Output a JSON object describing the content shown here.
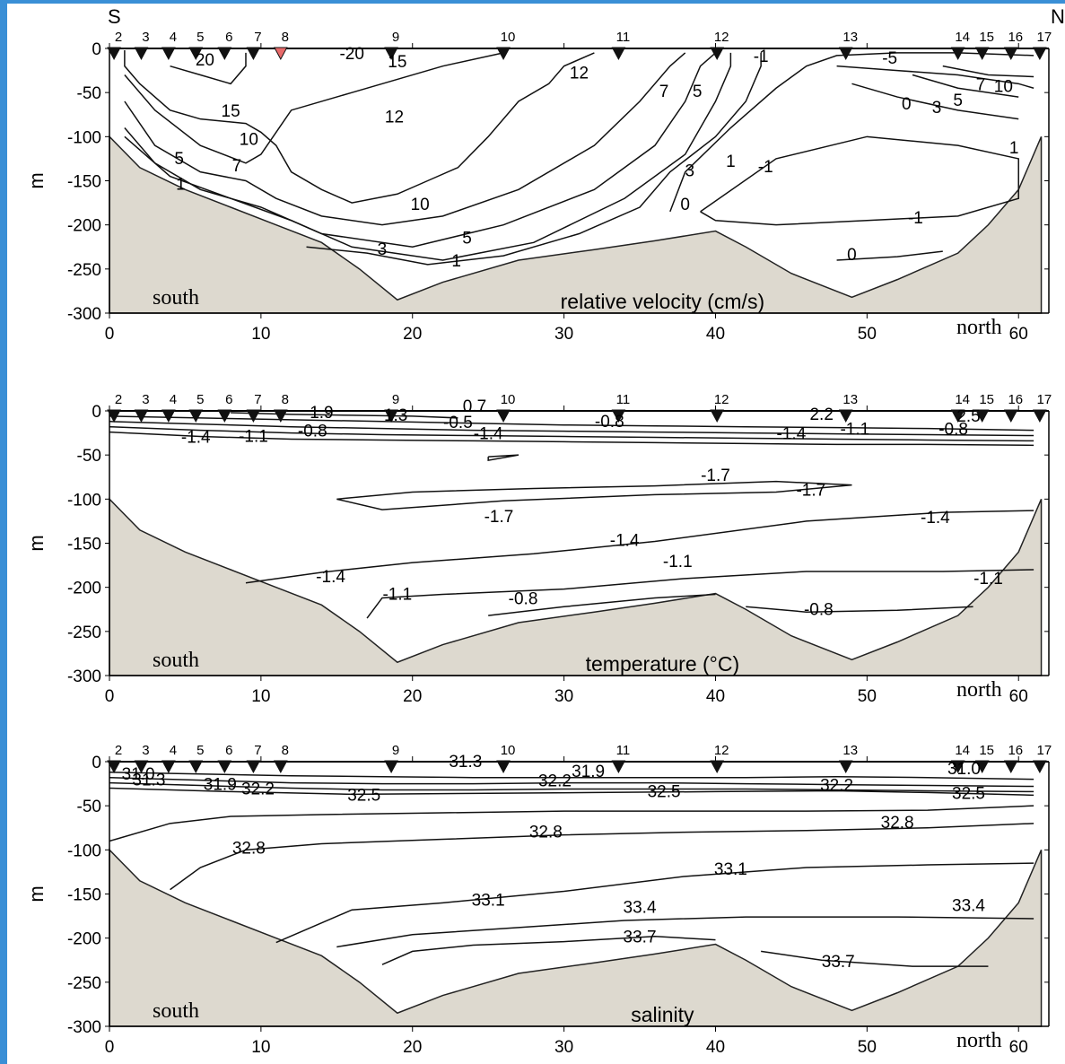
{
  "compass": {
    "left": "S",
    "right": "N"
  },
  "chart_data": [
    {
      "type": "contour",
      "title": "relative velocity (cm/s)",
      "ylabel": "m",
      "xlim": [
        0,
        62
      ],
      "ylim": [
        -300,
        0
      ],
      "xticks": [
        "0",
        "10",
        "20",
        "30",
        "40",
        "50",
        "60"
      ],
      "yticks": [
        "0",
        "-50",
        "-100",
        "-150",
        "-200",
        "-250",
        "-300"
      ],
      "annotations": {
        "left": "south",
        "right": "north"
      },
      "stations": [
        {
          "label": "2",
          "x": 0.3
        },
        {
          "label": "3",
          "x": 2.1
        },
        {
          "label": "4",
          "x": 3.9
        },
        {
          "label": "5",
          "x": 5.7
        },
        {
          "label": "6",
          "x": 7.6
        },
        {
          "label": "7",
          "x": 9.5
        },
        {
          "label": "8",
          "x": 11.3,
          "highlight": true
        },
        {
          "label": "9",
          "x": 18.6
        },
        {
          "label": "10",
          "x": 26.0
        },
        {
          "label": "11",
          "x": 33.6
        },
        {
          "label": "12",
          "x": 40.1
        },
        {
          "label": "13",
          "x": 48.6
        },
        {
          "label": "14",
          "x": 56.0
        },
        {
          "label": "15",
          "x": 57.6
        },
        {
          "label": "16",
          "x": 59.5
        },
        {
          "label": "17",
          "x": 61.4
        }
      ],
      "contour_labels": [
        {
          "text": "20",
          "x": 6.3,
          "y": -12
        },
        {
          "text": "-20",
          "x": 16.0,
          "y": -5
        },
        {
          "text": "15",
          "x": 19.0,
          "y": -14
        },
        {
          "text": "12",
          "x": 31.0,
          "y": -27
        },
        {
          "text": "15",
          "x": 8.0,
          "y": -70
        },
        {
          "text": "12",
          "x": 18.8,
          "y": -77
        },
        {
          "text": "10",
          "x": 9.2,
          "y": -102
        },
        {
          "text": "7",
          "x": 8.4,
          "y": -132
        },
        {
          "text": "5",
          "x": 4.6,
          "y": -124
        },
        {
          "text": "1",
          "x": 4.7,
          "y": -153
        },
        {
          "text": "7",
          "x": 36.6,
          "y": -48
        },
        {
          "text": "5",
          "x": 38.8,
          "y": -48
        },
        {
          "text": "3",
          "x": 38.3,
          "y": -138
        },
        {
          "text": "1",
          "x": 41.0,
          "y": -127
        },
        {
          "text": "-1",
          "x": 43.3,
          "y": -133
        },
        {
          "text": "-1",
          "x": 43.0,
          "y": -8
        },
        {
          "text": "-5",
          "x": 51.5,
          "y": -10
        },
        {
          "text": "10",
          "x": 20.5,
          "y": -176
        },
        {
          "text": "0",
          "x": 38.0,
          "y": -176
        },
        {
          "text": "5",
          "x": 23.6,
          "y": -214
        },
        {
          "text": "3",
          "x": 18.0,
          "y": -227
        },
        {
          "text": "1",
          "x": 22.9,
          "y": -240
        },
        {
          "text": "0",
          "x": 49.0,
          "y": -233
        },
        {
          "text": "-1",
          "x": 53.2,
          "y": -191
        },
        {
          "text": "0",
          "x": 52.6,
          "y": -62
        },
        {
          "text": "3",
          "x": 54.6,
          "y": -66
        },
        {
          "text": "5",
          "x": 56.0,
          "y": -58
        },
        {
          "text": "7",
          "x": 57.5,
          "y": -40
        },
        {
          "text": "10",
          "x": 59.0,
          "y": -42
        },
        {
          "text": "1",
          "x": 59.7,
          "y": -112
        }
      ]
    },
    {
      "type": "contour",
      "title": "temperature (°C)",
      "ylabel": "m",
      "xlim": [
        0,
        62
      ],
      "ylim": [
        -300,
        0
      ],
      "xticks": [
        "0",
        "10",
        "20",
        "30",
        "40",
        "50",
        "60"
      ],
      "yticks": [
        "0",
        "-50",
        "-100",
        "-150",
        "-200",
        "-250",
        "-300"
      ],
      "annotations": {
        "left": "south",
        "right": "north"
      },
      "stations": [
        {
          "label": "2",
          "x": 0.3
        },
        {
          "label": "3",
          "x": 2.1
        },
        {
          "label": "4",
          "x": 3.9
        },
        {
          "label": "5",
          "x": 5.7
        },
        {
          "label": "6",
          "x": 7.6
        },
        {
          "label": "7",
          "x": 9.5
        },
        {
          "label": "8",
          "x": 11.3
        },
        {
          "label": "9",
          "x": 18.6
        },
        {
          "label": "10",
          "x": 26.0
        },
        {
          "label": "11",
          "x": 33.6
        },
        {
          "label": "12",
          "x": 40.1
        },
        {
          "label": "13",
          "x": 48.6
        },
        {
          "label": "14",
          "x": 56.0
        },
        {
          "label": "15",
          "x": 57.6
        },
        {
          "label": "16",
          "x": 59.5
        },
        {
          "label": "17",
          "x": 61.4
        }
      ],
      "contour_labels": [
        {
          "text": "1.9",
          "x": 14.0,
          "y": -1
        },
        {
          "text": "1.3",
          "x": 18.9,
          "y": -4
        },
        {
          "text": "0.7",
          "x": 24.1,
          "y": 6
        },
        {
          "text": "-0.5",
          "x": 23.0,
          "y": -12
        },
        {
          "text": "-0.8",
          "x": 33.0,
          "y": -11
        },
        {
          "text": "-0.8",
          "x": 13.4,
          "y": -22
        },
        {
          "text": "-1.1",
          "x": 9.5,
          "y": -28
        },
        {
          "text": "-1.4",
          "x": 5.7,
          "y": -29
        },
        {
          "text": "-1.4",
          "x": 25.0,
          "y": -25
        },
        {
          "text": "2.2",
          "x": 47.0,
          "y": -3
        },
        {
          "text": "2.5",
          "x": 56.7,
          "y": -5
        },
        {
          "text": "-1.4",
          "x": 45.0,
          "y": -25
        },
        {
          "text": "-1.1",
          "x": 49.2,
          "y": -20
        },
        {
          "text": "-0.8",
          "x": 55.7,
          "y": -20
        },
        {
          "text": "-1.7",
          "x": 40.0,
          "y": -72
        },
        {
          "text": "-1.7",
          "x": 46.3,
          "y": -89
        },
        {
          "text": "-1.7",
          "x": 25.7,
          "y": -119
        },
        {
          "text": "-1.4",
          "x": 54.5,
          "y": -120
        },
        {
          "text": "-1.4",
          "x": 34.0,
          "y": -146
        },
        {
          "text": "-1.1",
          "x": 37.5,
          "y": -170
        },
        {
          "text": "-1.4",
          "x": 14.6,
          "y": -187
        },
        {
          "text": "-1.1",
          "x": 58.0,
          "y": -189
        },
        {
          "text": "-1.1",
          "x": 19.0,
          "y": -207
        },
        {
          "text": "-0.8",
          "x": 27.3,
          "y": -212
        },
        {
          "text": "-0.8",
          "x": 46.8,
          "y": -224
        }
      ]
    },
    {
      "type": "contour",
      "title": "salinity",
      "ylabel": "m",
      "xlim": [
        0,
        62
      ],
      "ylim": [
        -300,
        0
      ],
      "xticks": [
        "0",
        "10",
        "20",
        "30",
        "40",
        "50",
        "60"
      ],
      "yticks": [
        "0",
        "-50",
        "-100",
        "-150",
        "-200",
        "-250",
        "-300"
      ],
      "annotations": {
        "left": "south",
        "right": "north"
      },
      "stations": [
        {
          "label": "2",
          "x": 0.3
        },
        {
          "label": "3",
          "x": 2.1
        },
        {
          "label": "4",
          "x": 3.9
        },
        {
          "label": "5",
          "x": 5.7
        },
        {
          "label": "6",
          "x": 7.6
        },
        {
          "label": "7",
          "x": 9.5
        },
        {
          "label": "8",
          "x": 11.3
        },
        {
          "label": "9",
          "x": 18.6
        },
        {
          "label": "10",
          "x": 26.0
        },
        {
          "label": "11",
          "x": 33.6
        },
        {
          "label": "12",
          "x": 40.1
        },
        {
          "label": "13",
          "x": 48.6
        },
        {
          "label": "14",
          "x": 56.0
        },
        {
          "label": "15",
          "x": 57.6
        },
        {
          "label": "16",
          "x": 59.5
        },
        {
          "label": "17",
          "x": 61.4
        }
      ],
      "contour_labels": [
        {
          "text": "31.0",
          "x": 1.9,
          "y": -13
        },
        {
          "text": "31.3",
          "x": 2.6,
          "y": -20
        },
        {
          "text": "31.9",
          "x": 7.3,
          "y": -25
        },
        {
          "text": "32.2",
          "x": 9.8,
          "y": -30
        },
        {
          "text": "32.5",
          "x": 16.8,
          "y": -37
        },
        {
          "text": "31.3",
          "x": 23.5,
          "y": 1
        },
        {
          "text": "32.2",
          "x": 29.4,
          "y": -21
        },
        {
          "text": "31.9",
          "x": 31.6,
          "y": -10
        },
        {
          "text": "32.5",
          "x": 36.6,
          "y": -33
        },
        {
          "text": "32.2",
          "x": 48.0,
          "y": -26
        },
        {
          "text": "31.0",
          "x": 56.4,
          "y": -7
        },
        {
          "text": "32.5",
          "x": 56.7,
          "y": -35
        },
        {
          "text": "32.8",
          "x": 52.0,
          "y": -68
        },
        {
          "text": "32.8",
          "x": 28.8,
          "y": -79
        },
        {
          "text": "32.8",
          "x": 9.2,
          "y": -97
        },
        {
          "text": "33.1",
          "x": 41.0,
          "y": -121
        },
        {
          "text": "33.1",
          "x": 25.0,
          "y": -156
        },
        {
          "text": "33.4",
          "x": 35.0,
          "y": -164
        },
        {
          "text": "33.4",
          "x": 56.7,
          "y": -162
        },
        {
          "text": "33.7",
          "x": 35.0,
          "y": -198
        },
        {
          "text": "33.7",
          "x": 48.1,
          "y": -226
        }
      ]
    }
  ]
}
